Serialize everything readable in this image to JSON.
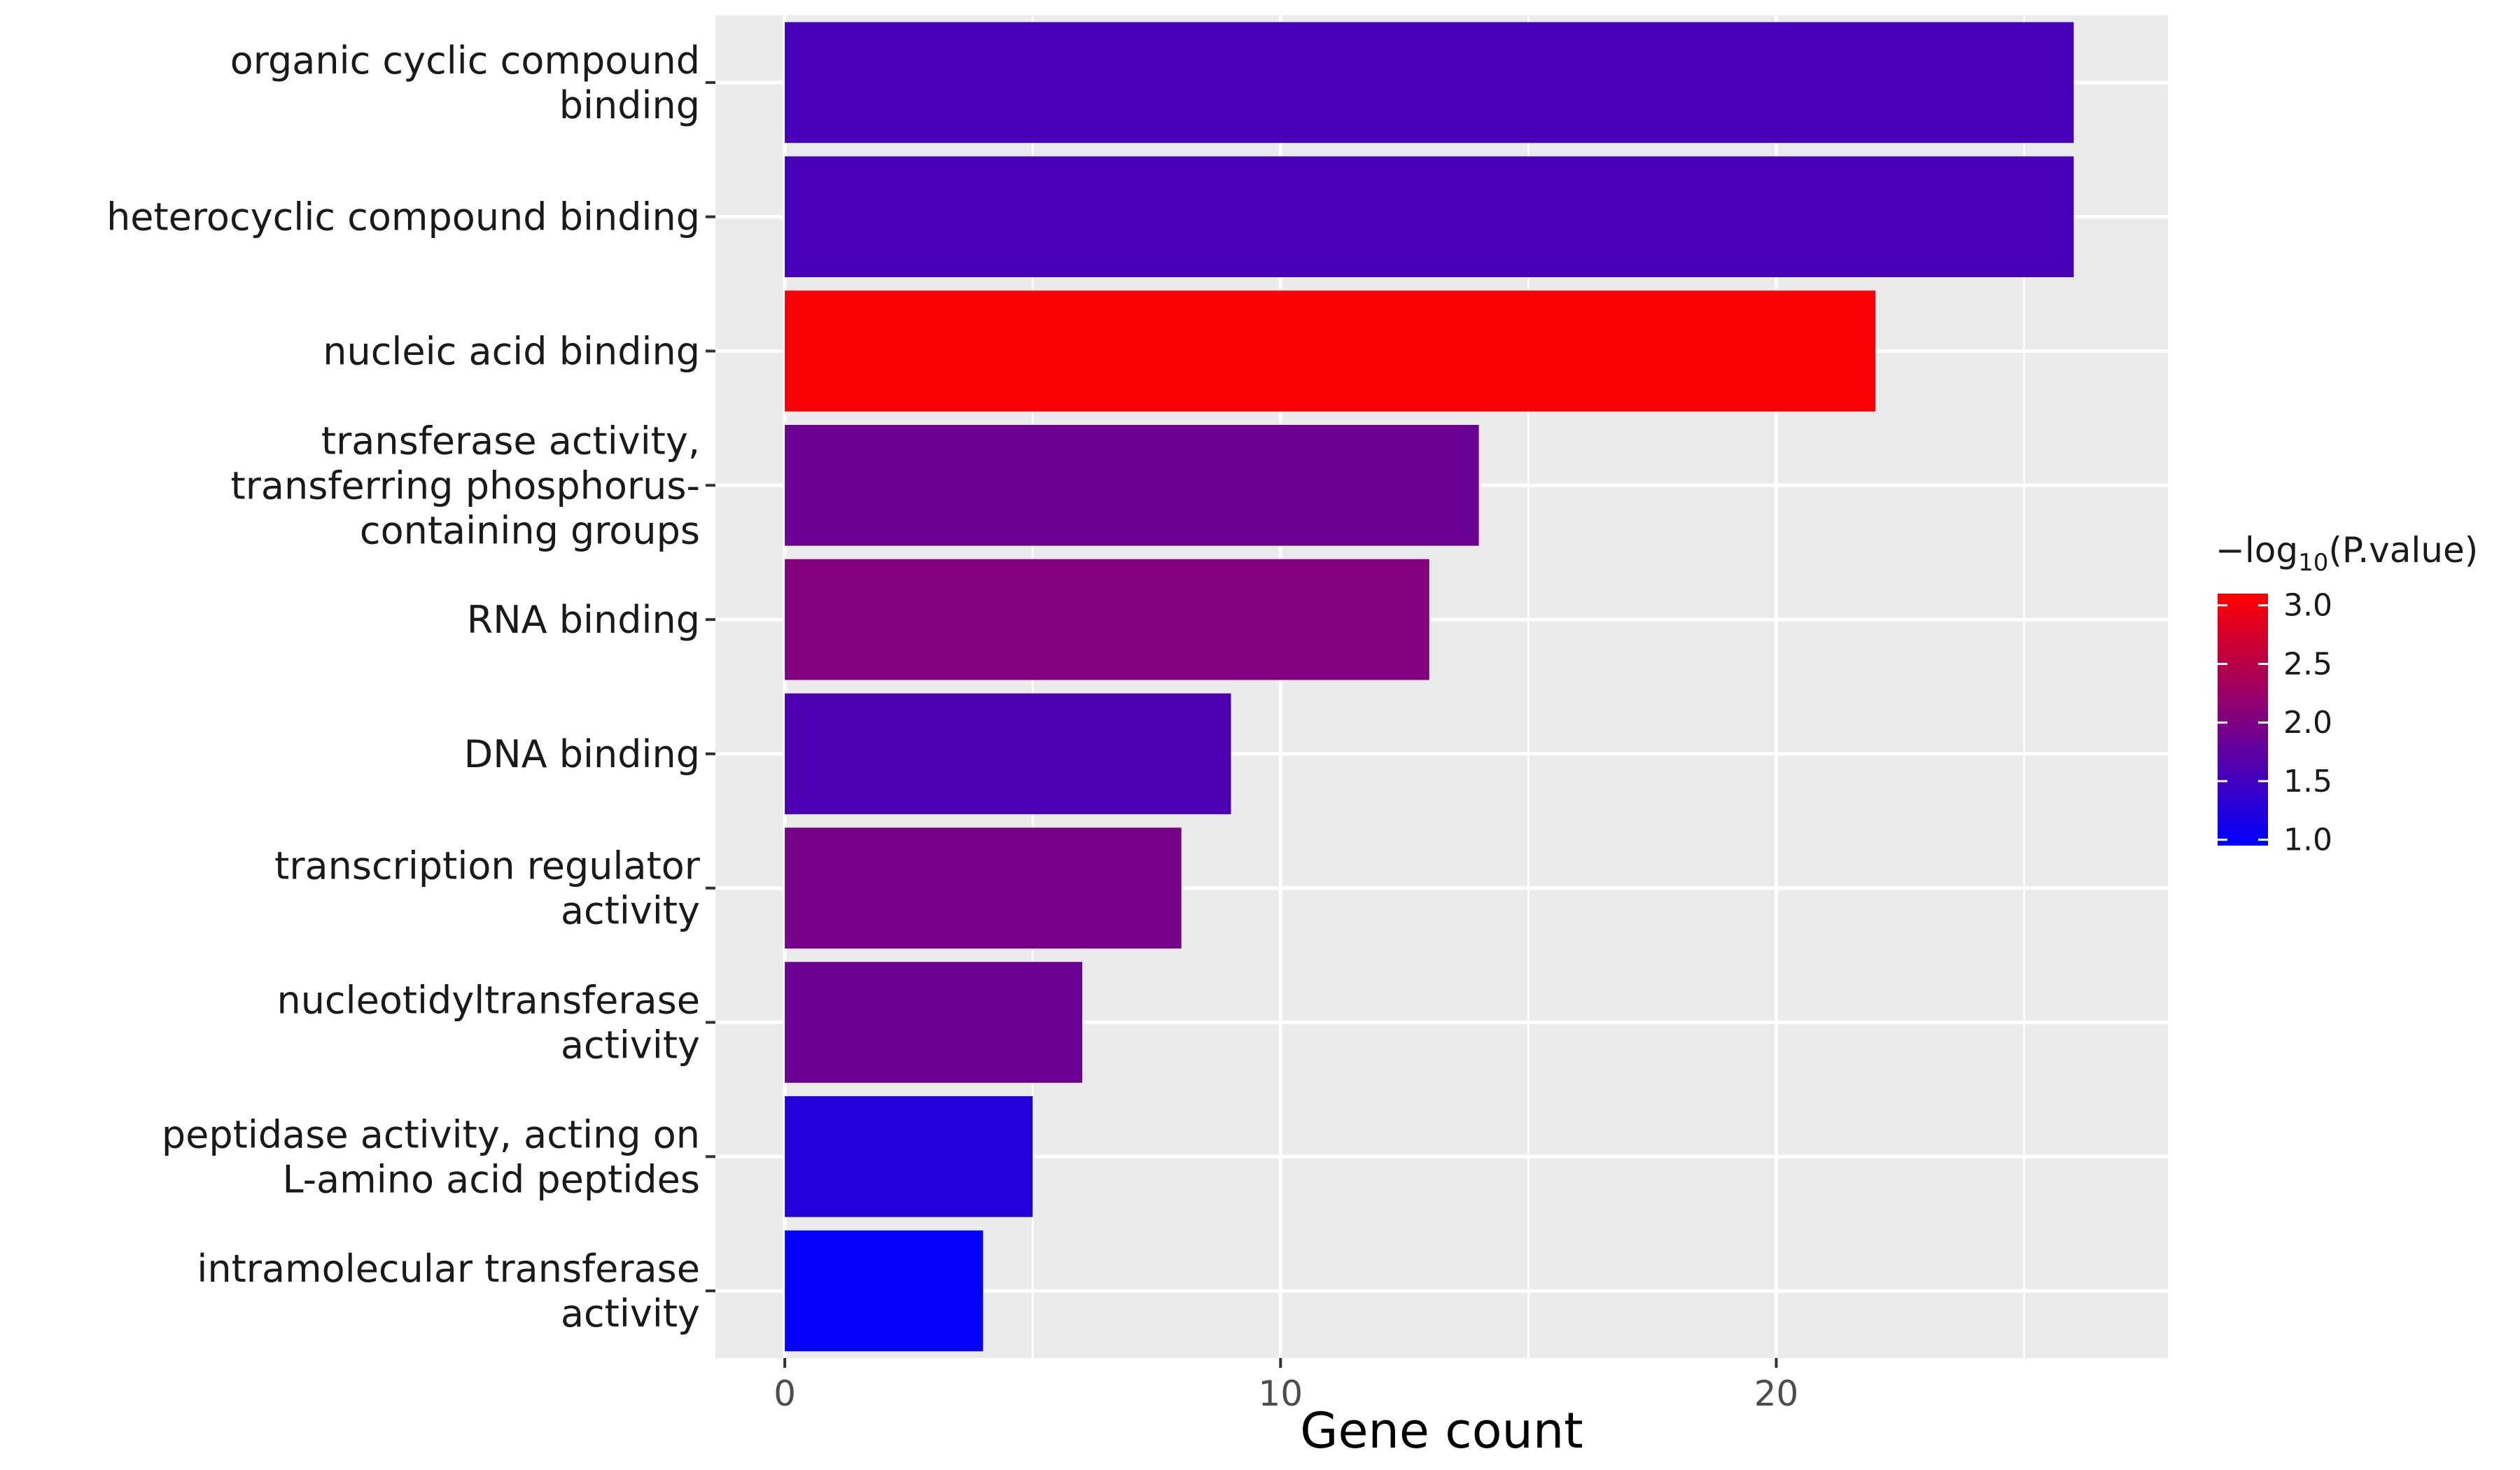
{
  "chart_data": {
    "type": "bar",
    "orientation": "horizontal",
    "categories": [
      [
        "organic cyclic compound",
        "binding"
      ],
      [
        "heterocyclic compound binding"
      ],
      [
        "nucleic acid binding"
      ],
      [
        "transferase activity,",
        "transferring phosphorus-",
        "containing groups"
      ],
      [
        "RNA binding"
      ],
      [
        "DNA binding"
      ],
      [
        "transcription regulator",
        "activity"
      ],
      [
        "nucleotidyltransferase",
        "activity"
      ],
      [
        "peptidase activity, acting on",
        "L-amino acid peptides"
      ],
      [
        "intramolecular transferase",
        "activity"
      ]
    ],
    "values": [
      26,
      26,
      22,
      14,
      13,
      9,
      8,
      6,
      5,
      4
    ],
    "neg_log10_pvalue": [
      1.55,
      1.55,
      3.05,
      1.85,
      2.05,
      1.6,
      1.95,
      1.85,
      1.25,
      1.0
    ],
    "xlabel": "Gene count",
    "ylabel": "",
    "xlim": [
      -1.4,
      27.9
    ],
    "xticks": [
      0,
      10,
      20
    ],
    "grid": true,
    "color_scale": {
      "title_prefix": "−log",
      "title_sub": "10",
      "title_suffix": "(P.value)",
      "low_color": "#0000ff",
      "high_color": "#ff0000",
      "range": [
        0.95,
        3.1
      ],
      "ticks": [
        "1.0",
        "1.5",
        "2.0",
        "2.5",
        "3.0"
      ],
      "tick_values": [
        1.0,
        1.5,
        2.0,
        2.5,
        3.0
      ]
    },
    "legend_position": "right",
    "panel_background": "#ebebeb",
    "grid_color": "#ffffff"
  }
}
